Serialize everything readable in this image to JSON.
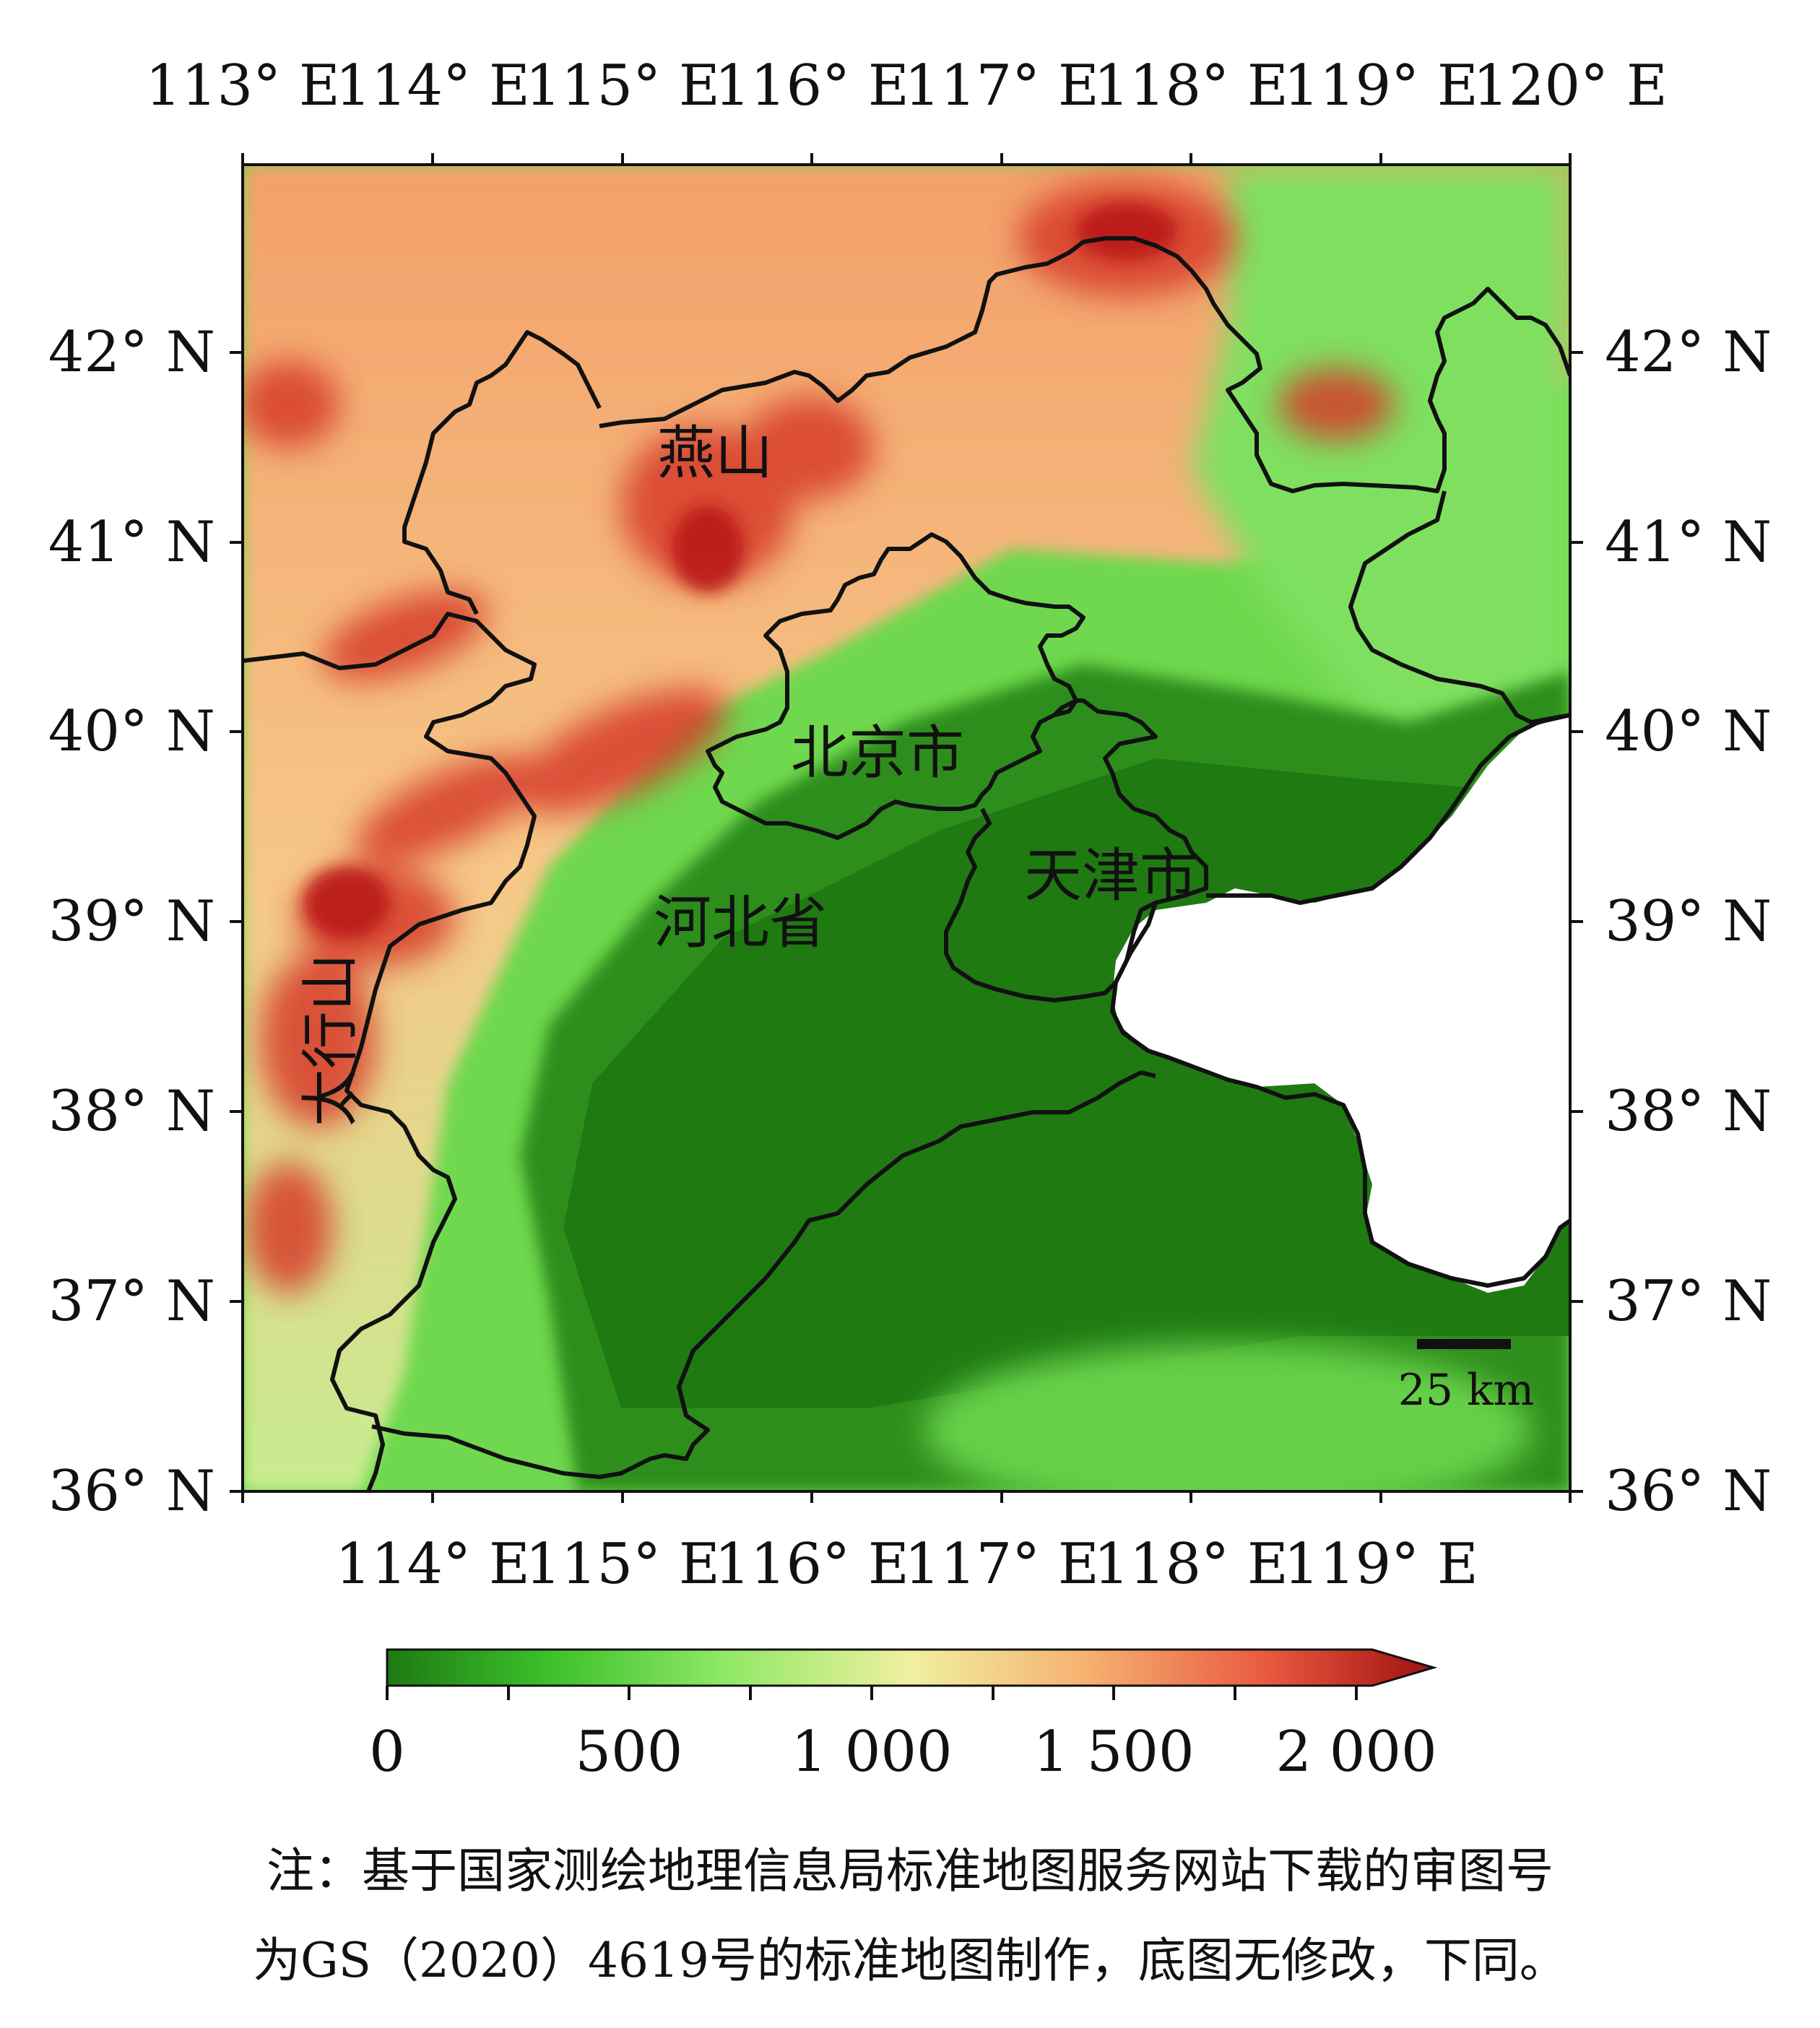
{
  "map": {
    "top_lon_labels": [
      "113° E",
      "114° E",
      "115° E",
      "116° E",
      "117° E",
      "118° E",
      "119° E",
      "120° E"
    ],
    "bottom_lon_labels": [
      "114° E",
      "115° E",
      "116° E",
      "117° E",
      "118° E",
      "119° E"
    ],
    "lat_labels": [
      "42° N",
      "41° N",
      "40° N",
      "39° N",
      "38° N",
      "37° N",
      "36° N"
    ],
    "place_labels": {
      "yanshan": "燕山",
      "beijing": "北京市",
      "tianjin": "天津市",
      "hebei": "河北省",
      "taihangshan": "太行山"
    },
    "scale_bar": "25 km"
  },
  "legend": {
    "ticks": [
      "0",
      "500",
      "1 000",
      "1 500",
      "2 000"
    ],
    "colors": [
      "#1e7a12",
      "#3bbf2a",
      "#8ee865",
      "#f0f0a0",
      "#f6b070",
      "#e85a40",
      "#a01010"
    ]
  },
  "note": {
    "line1": "注：基于国家测绘地理信息局标准地图服务网站下载的审图号",
    "line2": "为GS（2020）4619号的标准地图制作，底图无修改，下同。"
  }
}
